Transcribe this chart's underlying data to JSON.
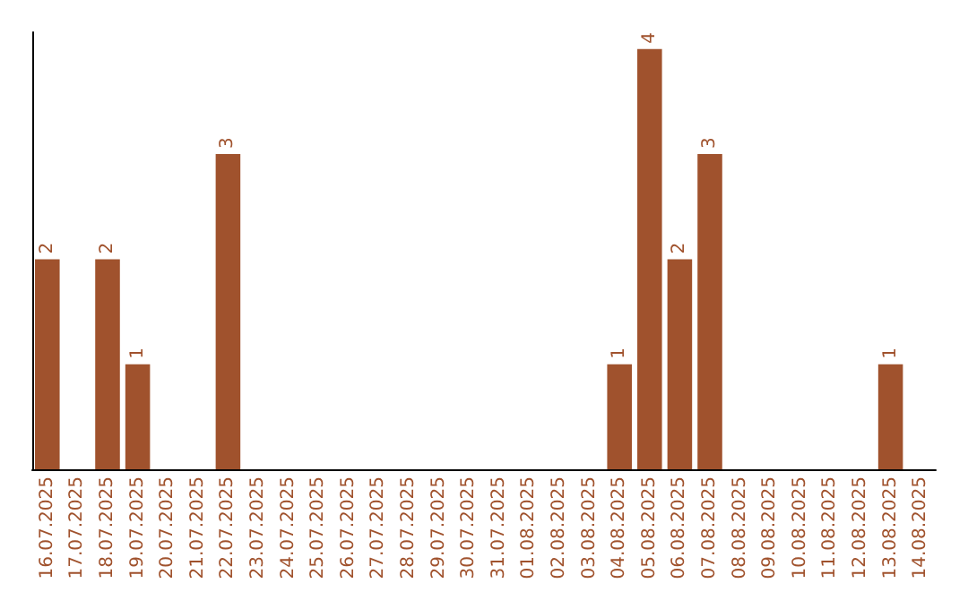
{
  "chart_data": {
    "type": "bar",
    "categories": [
      "16.07.2025",
      "17.07.2025",
      "18.07.2025",
      "19.07.2025",
      "20.07.2025",
      "21.07.2025",
      "22.07.2025",
      "23.07.2025",
      "24.07.2025",
      "25.07.2025",
      "26.07.2025",
      "27.07.2025",
      "28.07.2025",
      "29.07.2025",
      "30.07.2025",
      "31.07.2025",
      "01.08.2025",
      "02.08.2025",
      "03.08.2025",
      "04.08.2025",
      "05.08.2025",
      "06.08.2025",
      "07.08.2025",
      "08.08.2025",
      "09.08.2025",
      "10.08.2025",
      "11.08.2025",
      "12.08.2025",
      "13.08.2025",
      "14.08.2025"
    ],
    "values": [
      2,
      0,
      2,
      1,
      0,
      0,
      3,
      0,
      0,
      0,
      0,
      0,
      0,
      0,
      0,
      0,
      0,
      0,
      0,
      1,
      4,
      2,
      3,
      0,
      0,
      0,
      0,
      0,
      1,
      0
    ],
    "value_labels": [
      "2",
      null,
      "2",
      "1",
      null,
      null,
      "3",
      null,
      null,
      null,
      null,
      null,
      null,
      null,
      null,
      null,
      null,
      null,
      null,
      "1",
      "4",
      "2",
      "3",
      null,
      null,
      null,
      null,
      null,
      "1",
      null
    ],
    "color": "#a0522d",
    "ylim": [
      0,
      4.16
    ],
    "tick_labels": "x",
    "grid": false
  }
}
